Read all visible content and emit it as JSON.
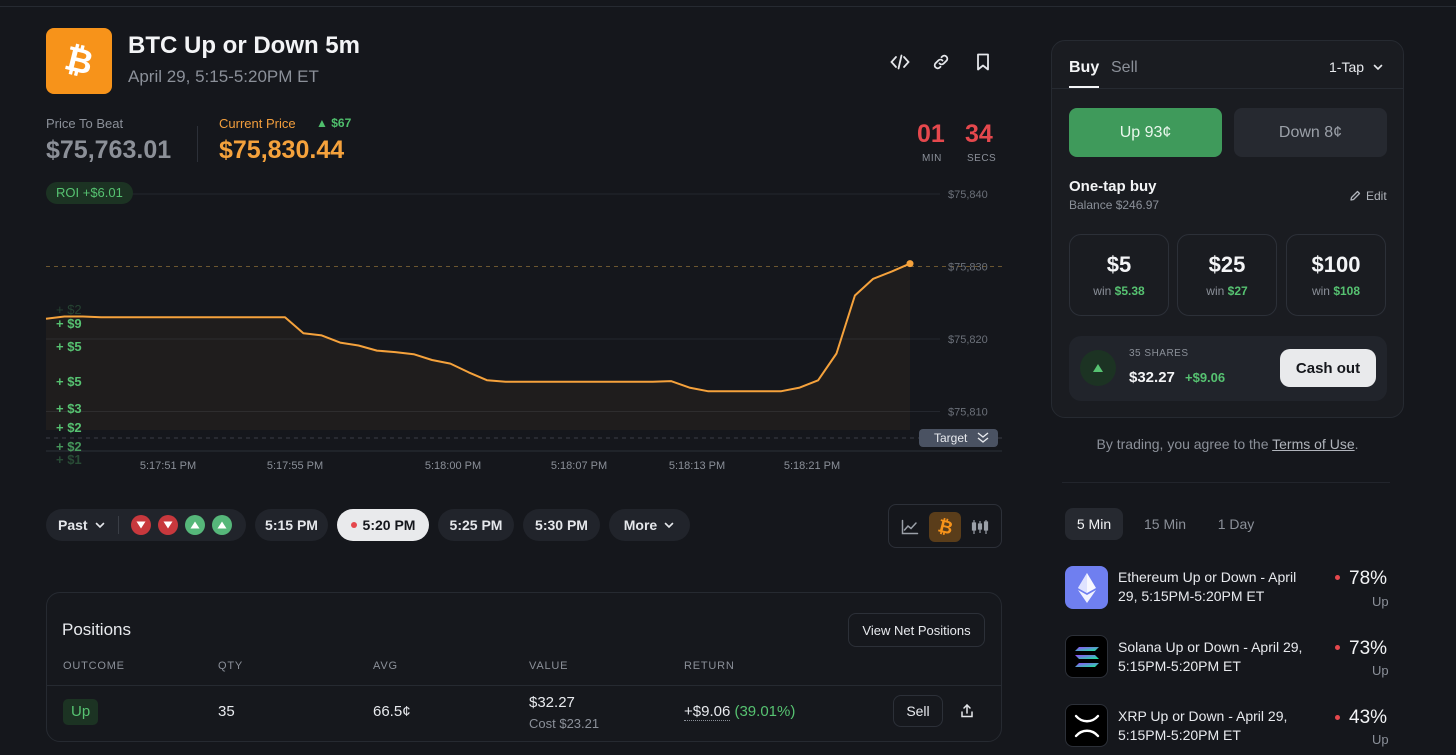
{
  "market": {
    "title": "BTC Up or Down 5m",
    "subtitle": "April 29, 5:15-5:20PM ET",
    "price_to_beat_label": "Price To Beat",
    "price_to_beat": "$75,763.01",
    "current_price_label": "Current Price",
    "current_price_delta": "$67",
    "current_price": "$75,830.44",
    "timer_min": "01",
    "timer_min_label": "MIN",
    "timer_sec": "34",
    "timer_sec_label": "SECS",
    "roi": "ROI +$6.01"
  },
  "chart_data": {
    "type": "line",
    "x_ticks": [
      "5:17:51 PM",
      "5:17:55 PM",
      "5:18:00 PM",
      "5:18:07 PM",
      "5:18:13 PM",
      "5:18:21 PM"
    ],
    "y_ticks": [
      "$75,840",
      "$75,830",
      "$75,820",
      "$75,810"
    ],
    "ylim": [
      75807,
      75840
    ],
    "target_label": "Target",
    "trade_markers": [
      "+ $9",
      "+ $5",
      "+ $5",
      "+ $3",
      "+ $2",
      "+ $2",
      "+ $1"
    ],
    "series": [
      {
        "values": [
          75822.8,
          75823.1,
          75823.1,
          75823.0,
          75823.0,
          75823.0,
          75823.0,
          75823.0,
          75823.0,
          75823.0,
          75823.0,
          75823.0,
          75823.0,
          75823.0,
          75820.8,
          75820.5,
          75819.5,
          75819.1,
          75818.4,
          75818.2,
          75817.9,
          75817.1,
          75816.6,
          75815.4,
          75814.3,
          75814.1,
          75814.1,
          75814.1,
          75814.1,
          75814.1,
          75814.1,
          75814.1,
          75814.1,
          75814.1,
          75814.2,
          75813.3,
          75812.8,
          75812.8,
          75812.8,
          75812.8,
          75812.8,
          75813.3,
          75814.3,
          75818.0,
          75826.0,
          75828.3,
          75829.3,
          75830.4
        ]
      }
    ]
  },
  "period_bar": {
    "past_label": "Past",
    "history": [
      "down",
      "down",
      "up",
      "up"
    ],
    "times": [
      "5:15 PM",
      "5:20 PM",
      "5:25 PM",
      "5:30 PM"
    ],
    "more_label": "More"
  },
  "positions": {
    "title": "Positions",
    "view_net_label": "View Net Positions",
    "headers": [
      "OUTCOME",
      "QTY",
      "AVG",
      "VALUE",
      "RETURN"
    ],
    "row": {
      "outcome": "Up",
      "qty": "35",
      "avg": "66.5¢",
      "value": "$32.27",
      "cost": "Cost $23.21",
      "return_amount": "+$9.06",
      "return_pct": "(39.01%)",
      "sell_label": "Sell"
    }
  },
  "trade": {
    "tab_buy": "Buy",
    "tab_sell": "Sell",
    "mode": "1-Tap",
    "up_label": "Up 93¢",
    "down_label": "Down 8¢",
    "one_tap_title": "One-tap buy",
    "balance": "Balance $246.97",
    "edit_label": "Edit",
    "amounts": [
      {
        "amount": "$5",
        "win_label": "win",
        "win": "$5.38"
      },
      {
        "amount": "$25",
        "win_label": "win",
        "win": "$27"
      },
      {
        "amount": "$100",
        "win_label": "win",
        "win": "$108"
      }
    ],
    "shares_label": "35 SHARES",
    "shares_value": "$32.27",
    "shares_gain": "+$9.06",
    "cash_out_label": "Cash out",
    "terms_prefix": "By trading, you agree to the ",
    "terms_link": "Terms of Use",
    "terms_suffix": "."
  },
  "timeframes": [
    "5 Min",
    "15 Min",
    "1 Day"
  ],
  "related_markets": [
    {
      "icon": "ethereum-icon",
      "title": "Ethereum Up or Down - April 29, 5:15PM-5:20PM ET",
      "pct": "78%",
      "side": "Up",
      "color": "#6f7ff0"
    },
    {
      "icon": "solana-icon",
      "title": "Solana Up or Down - April 29, 5:15PM-5:20PM ET",
      "pct": "73%",
      "side": "Up",
      "color": "#000000"
    },
    {
      "icon": "xrp-icon",
      "title": "XRP Up or Down - April 29, 5:15PM-5:20PM ET",
      "pct": "43%",
      "side": "Up",
      "color": "#000000"
    }
  ],
  "colors": {
    "accent_orange": "#f5a23c",
    "up_green": "#3f9a5b",
    "down_red": "#e5484d",
    "bg": "#15171c"
  }
}
